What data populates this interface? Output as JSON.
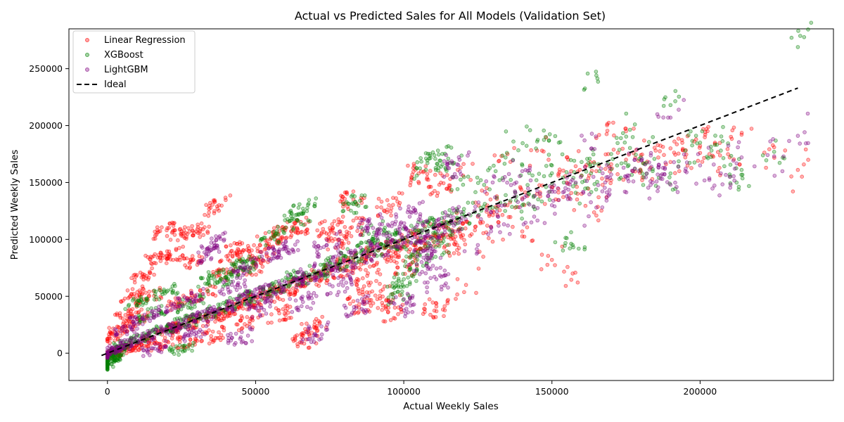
{
  "chart_data": {
    "type": "scatter",
    "title": "Actual vs Predicted Sales for All Models (Validation Set)",
    "xlabel": "Actual Weekly Sales",
    "ylabel": "Predicted Weekly Sales",
    "xlim": [
      -13000,
      245000
    ],
    "ylim": [
      -24000,
      285000
    ],
    "xticks": [
      0,
      50000,
      100000,
      150000,
      200000
    ],
    "yticks": [
      0,
      50000,
      100000,
      150000,
      200000,
      250000
    ],
    "grid": false,
    "legend_position": "top-left",
    "series": [
      {
        "name": "Linear Regression",
        "color": "#ff0000",
        "points": [
          [
            0,
            -2000
          ],
          [
            2000,
            -1500
          ],
          [
            5000,
            3000
          ],
          [
            10000,
            7000
          ],
          [
            15000,
            14000
          ],
          [
            20000,
            22000
          ],
          [
            25000,
            24000
          ],
          [
            30000,
            28000
          ],
          [
            35000,
            32000
          ],
          [
            40000,
            38000
          ],
          [
            45000,
            42000
          ],
          [
            50000,
            47000
          ],
          [
            55000,
            50000
          ],
          [
            60000,
            56000
          ],
          [
            65000,
            60000
          ],
          [
            70000,
            66000
          ],
          [
            75000,
            70000
          ],
          [
            80000,
            76000
          ],
          [
            85000,
            80000
          ],
          [
            90000,
            86000
          ],
          [
            95000,
            90000
          ],
          [
            100000,
            96000
          ],
          [
            105000,
            100000
          ],
          [
            110000,
            104000
          ],
          [
            115000,
            110000
          ],
          [
            120000,
            114000
          ],
          [
            125000,
            120000
          ],
          [
            130000,
            125000
          ],
          [
            135000,
            130000
          ],
          [
            140000,
            136000
          ],
          [
            145000,
            140000
          ],
          [
            150000,
            146000
          ],
          [
            155000,
            150000
          ],
          [
            160000,
            156000
          ],
          [
            165000,
            160000
          ],
          [
            170000,
            166000
          ],
          [
            175000,
            170000
          ],
          [
            180000,
            174000
          ],
          [
            185000,
            178000
          ],
          [
            190000,
            180000
          ],
          [
            195000,
            172000
          ],
          [
            200000,
            176000
          ],
          [
            205000,
            184000
          ],
          [
            210000,
            172000
          ],
          [
            214000,
            192000
          ],
          [
            225000,
            181000
          ],
          [
            233000,
            161000
          ],
          [
            20000,
            108000
          ],
          [
            25000,
            105000
          ],
          [
            37000,
            129000
          ],
          [
            30000,
            107000
          ],
          [
            17000,
            84000
          ],
          [
            21000,
            85000
          ],
          [
            28000,
            80000
          ],
          [
            111000,
            41000
          ],
          [
            121000,
            60000
          ],
          [
            97000,
            40000
          ],
          [
            83000,
            135000
          ],
          [
            105000,
            158000
          ],
          [
            157000,
            70000
          ],
          [
            150000,
            82000
          ],
          [
            165000,
            121000
          ],
          [
            165000,
            189000
          ],
          [
            120000,
            156000
          ],
          [
            8000,
            52000
          ],
          [
            12000,
            68000
          ],
          [
            45000,
            86000
          ],
          [
            52000,
            89000
          ],
          [
            60000,
            108000
          ],
          [
            70000,
            22000
          ],
          [
            85000,
            43000
          ],
          [
            92000,
            48000
          ],
          [
            67000,
            12000
          ],
          [
            40000,
            70000
          ],
          [
            55000,
            100000
          ],
          [
            75000,
            110000
          ],
          [
            88000,
            62000
          ],
          [
            10000,
            30000
          ],
          [
            5000,
            22000
          ],
          [
            3000,
            15000
          ],
          [
            18000,
            8000
          ],
          [
            28000,
            12000
          ],
          [
            35000,
            15000
          ],
          [
            48000,
            28000
          ],
          [
            58000,
            35000
          ],
          [
            64000,
            110000
          ],
          [
            101000,
            76000
          ],
          [
            130000,
            98000
          ],
          [
            140000,
            107000
          ],
          [
            95000,
            130000
          ],
          [
            112000,
            148000
          ],
          [
            135000,
            175000
          ],
          [
            145000,
            178000
          ],
          [
            155000,
            172000
          ],
          [
            175000,
            195000
          ],
          [
            180000,
            160000
          ],
          [
            190000,
            168000
          ],
          [
            205000,
            185000
          ],
          [
            198000,
            186000
          ],
          [
            42000,
            90000
          ],
          [
            32000,
            52000
          ],
          [
            24000,
            45000
          ],
          [
            14000,
            50000
          ],
          [
            7000,
            35000
          ],
          [
            50000,
            75000
          ],
          [
            78000,
            100000
          ],
          [
            82000,
            110000
          ],
          [
            117000,
            96000
          ],
          [
            124000,
            108000
          ],
          [
            128000,
            140000
          ],
          [
            132000,
            115000
          ],
          [
            160000,
            140000
          ],
          [
            170000,
            152000
          ]
        ]
      },
      {
        "name": "XGBoost",
        "color": "#008000",
        "points": [
          [
            0,
            -8000
          ],
          [
            0,
            -10000
          ],
          [
            500,
            -6000
          ],
          [
            1500,
            -4000
          ],
          [
            3000,
            2000
          ],
          [
            6000,
            8000
          ],
          [
            12000,
            14000
          ],
          [
            18000,
            20000
          ],
          [
            24000,
            26000
          ],
          [
            30000,
            30000
          ],
          [
            38000,
            38000
          ],
          [
            44000,
            46000
          ],
          [
            52000,
            52000
          ],
          [
            58000,
            60000
          ],
          [
            64000,
            66000
          ],
          [
            70000,
            70000
          ],
          [
            76000,
            78000
          ],
          [
            82000,
            84000
          ],
          [
            88000,
            90000
          ],
          [
            94000,
            96000
          ],
          [
            100000,
            100000
          ],
          [
            106000,
            108000
          ],
          [
            112000,
            112000
          ],
          [
            118000,
            118000
          ],
          [
            124000,
            124000
          ],
          [
            130000,
            128000
          ],
          [
            136000,
            134000
          ],
          [
            142000,
            140000
          ],
          [
            148000,
            146000
          ],
          [
            154000,
            150000
          ],
          [
            160000,
            156000
          ],
          [
            166000,
            160000
          ],
          [
            172000,
            165000
          ],
          [
            178000,
            162000
          ],
          [
            184000,
            160000
          ],
          [
            190000,
            158000
          ],
          [
            200000,
            185000
          ],
          [
            207000,
            178000
          ],
          [
            210000,
            157000
          ],
          [
            214000,
            161000
          ],
          [
            225000,
            177000
          ],
          [
            233000,
            269000
          ],
          [
            165000,
            244000
          ],
          [
            178000,
            201000
          ],
          [
            190000,
            218000
          ],
          [
            137000,
            186000
          ],
          [
            145000,
            186000
          ],
          [
            115000,
            171000
          ],
          [
            108000,
            167000
          ],
          [
            149000,
            187000
          ],
          [
            157000,
            95000
          ],
          [
            155000,
            101000
          ],
          [
            66000,
            127000
          ],
          [
            83000,
            131000
          ],
          [
            64000,
            117000
          ],
          [
            56000,
            103000
          ],
          [
            25000,
            3000
          ],
          [
            47000,
            78000
          ],
          [
            38000,
            64000
          ],
          [
            100000,
            65000
          ],
          [
            20000,
            54000
          ],
          [
            28000,
            44000
          ],
          [
            90000,
            106000
          ],
          [
            120000,
            148000
          ],
          [
            126000,
            152000
          ],
          [
            131000,
            160000
          ],
          [
            140000,
            130000
          ],
          [
            150000,
            165000
          ],
          [
            160000,
            168000
          ],
          [
            162000,
            145000
          ],
          [
            170000,
            175000
          ],
          [
            180000,
            172000
          ],
          [
            195000,
            178000
          ],
          [
            205000,
            183000
          ],
          [
            140000,
            165000
          ],
          [
            98000,
            54000
          ],
          [
            104000,
            85000
          ],
          [
            112000,
            94000
          ],
          [
            10000,
            45000
          ],
          [
            15000,
            35000
          ],
          [
            35000,
            66000
          ],
          [
            45000,
            75000
          ]
        ]
      },
      {
        "name": "LightGBM",
        "color": "#800080",
        "points": [
          [
            0,
            0
          ],
          [
            1000,
            2000
          ],
          [
            4000,
            5000
          ],
          [
            8000,
            10000
          ],
          [
            14000,
            15000
          ],
          [
            20000,
            20000
          ],
          [
            26000,
            27000
          ],
          [
            32000,
            32000
          ],
          [
            38000,
            39000
          ],
          [
            44000,
            45000
          ],
          [
            50000,
            50000
          ],
          [
            56000,
            57000
          ],
          [
            62000,
            62000
          ],
          [
            68000,
            69000
          ],
          [
            74000,
            74000
          ],
          [
            80000,
            81000
          ],
          [
            86000,
            86000
          ],
          [
            92000,
            93000
          ],
          [
            98000,
            98000
          ],
          [
            104000,
            105000
          ],
          [
            110000,
            110000
          ],
          [
            116000,
            116000
          ],
          [
            122000,
            122000
          ],
          [
            128000,
            126000
          ],
          [
            134000,
            130000
          ],
          [
            140000,
            135000
          ],
          [
            146000,
            140000
          ],
          [
            152000,
            145000
          ],
          [
            158000,
            150000
          ],
          [
            164000,
            155000
          ],
          [
            170000,
            157000
          ],
          [
            176000,
            156000
          ],
          [
            182000,
            158000
          ],
          [
            188000,
            157000
          ],
          [
            195000,
            160000
          ],
          [
            200000,
            165000
          ],
          [
            207000,
            158000
          ],
          [
            210000,
            155000
          ],
          [
            214000,
            172000
          ],
          [
            225000,
            173000
          ],
          [
            233000,
            191000
          ],
          [
            190000,
            207000
          ],
          [
            161000,
            187000
          ],
          [
            118000,
            166000
          ],
          [
            111000,
            65000
          ],
          [
            99000,
            41000
          ],
          [
            70000,
            17000
          ],
          [
            84000,
            40000
          ],
          [
            34000,
            87000
          ],
          [
            36000,
            97000
          ],
          [
            46000,
            74000
          ],
          [
            45000,
            14000
          ],
          [
            28000,
            48000
          ],
          [
            20000,
            40000
          ],
          [
            12000,
            30000
          ],
          [
            6000,
            20000
          ],
          [
            88000,
            110000
          ],
          [
            95000,
            112000
          ],
          [
            130000,
            150000
          ],
          [
            138000,
            150000
          ],
          [
            150000,
            130000
          ],
          [
            165000,
            128000
          ],
          [
            175000,
            155000
          ],
          [
            186000,
            163000
          ],
          [
            140000,
            160000
          ],
          [
            125000,
            95000
          ],
          [
            108000,
            90000
          ],
          [
            60000,
            92000
          ],
          [
            52000,
            40000
          ],
          [
            16000,
            4000
          ],
          [
            74000,
            95000
          ],
          [
            78000,
            60000
          ],
          [
            102000,
            120000
          ],
          [
            106000,
            80000
          ],
          [
            132000,
            112000
          ],
          [
            144000,
            120000
          ],
          [
            155000,
            138000
          ],
          [
            168000,
            150000
          ],
          [
            178000,
            170000
          ],
          [
            184000,
            150000
          ],
          [
            190000,
            148000
          ],
          [
            56000,
            88000
          ],
          [
            66000,
            45000
          ],
          [
            42000,
            60000
          ],
          [
            30000,
            18000
          ]
        ]
      }
    ],
    "reference_line": {
      "name": "Ideal",
      "color": "#000000",
      "style": "dashed",
      "from": [
        -2000,
        -2000
      ],
      "to": [
        233000,
        233000
      ]
    }
  }
}
